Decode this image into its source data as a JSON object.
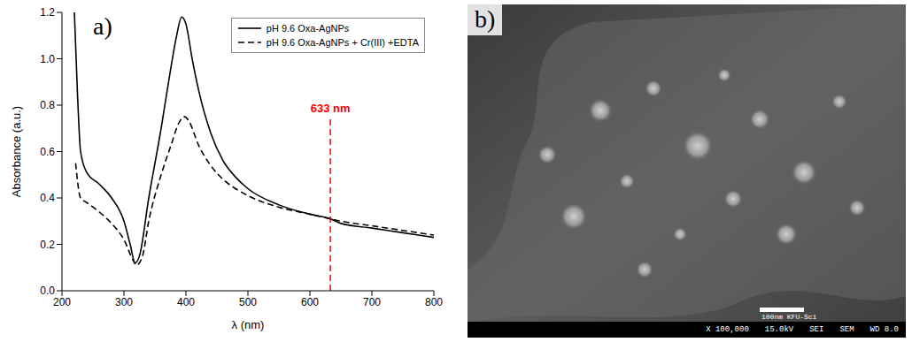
{
  "chart_data": {
    "type": "line",
    "label": "a)",
    "x_label": "λ (nm)",
    "y_label": "Absorbance (a.u.)",
    "xlim": [
      200,
      800
    ],
    "xticks": [
      200,
      300,
      400,
      500,
      600,
      700,
      800
    ],
    "ylim": [
      0,
      1.2
    ],
    "yticks": [
      {
        "value": 0,
        "label": "0.0"
      },
      {
        "value": 0.2,
        "label": "0.2"
      },
      {
        "value": 0.4,
        "label": "0.4"
      },
      {
        "value": 0.6,
        "label": "0.6"
      },
      {
        "value": 0.8,
        "label": "0.8"
      },
      {
        "value": 1.0,
        "label": "1.0"
      },
      {
        "value": 1.2,
        "label": "1.2"
      }
    ],
    "legend": "upper right",
    "series": [
      {
        "name": "pH 9.6 Oxa-AgNPs",
        "color": "#000000",
        "line_style": "solid",
        "x": [
          220,
          225,
          230,
          240,
          260,
          280,
          300,
          310,
          318,
          325,
          340,
          360,
          375,
          385,
          393,
          400,
          410,
          420,
          440,
          460,
          480,
          500,
          550,
          600,
          633,
          650,
          700,
          750,
          800
        ],
        "values": [
          1.2,
          0.85,
          0.6,
          0.51,
          0.46,
          0.4,
          0.3,
          0.2,
          0.12,
          0.15,
          0.4,
          0.7,
          0.95,
          1.1,
          1.18,
          1.15,
          1.0,
          0.87,
          0.68,
          0.56,
          0.49,
          0.44,
          0.37,
          0.33,
          0.31,
          0.29,
          0.27,
          0.25,
          0.23
        ]
      },
      {
        "name": "pH 9.6 Oxa-AgNPs + Cr(III) +EDTA",
        "color": "#000000",
        "line_style": "dashed",
        "x": [
          222,
          230,
          240,
          260,
          280,
          300,
          315,
          320,
          330,
          340,
          360,
          375,
          390,
          398,
          405,
          420,
          440,
          460,
          480,
          500,
          550,
          600,
          633,
          650,
          700,
          750,
          800
        ],
        "values": [
          0.55,
          0.4,
          0.38,
          0.34,
          0.29,
          0.22,
          0.13,
          0.11,
          0.15,
          0.3,
          0.5,
          0.62,
          0.73,
          0.75,
          0.73,
          0.63,
          0.54,
          0.48,
          0.44,
          0.41,
          0.36,
          0.33,
          0.31,
          0.3,
          0.28,
          0.26,
          0.24
        ]
      }
    ],
    "annotations": [
      {
        "text": "633 nm",
        "x": 633,
        "y": 0.75,
        "color": "#ff0000",
        "line_style": "dashed"
      }
    ]
  },
  "image": {
    "label": "b)",
    "scale_bar": "100nm",
    "lab": "KFU-Sci",
    "footer": [
      "X 100,000",
      "15.0kV",
      "SEI",
      "SEM",
      "WD 8.0"
    ]
  }
}
